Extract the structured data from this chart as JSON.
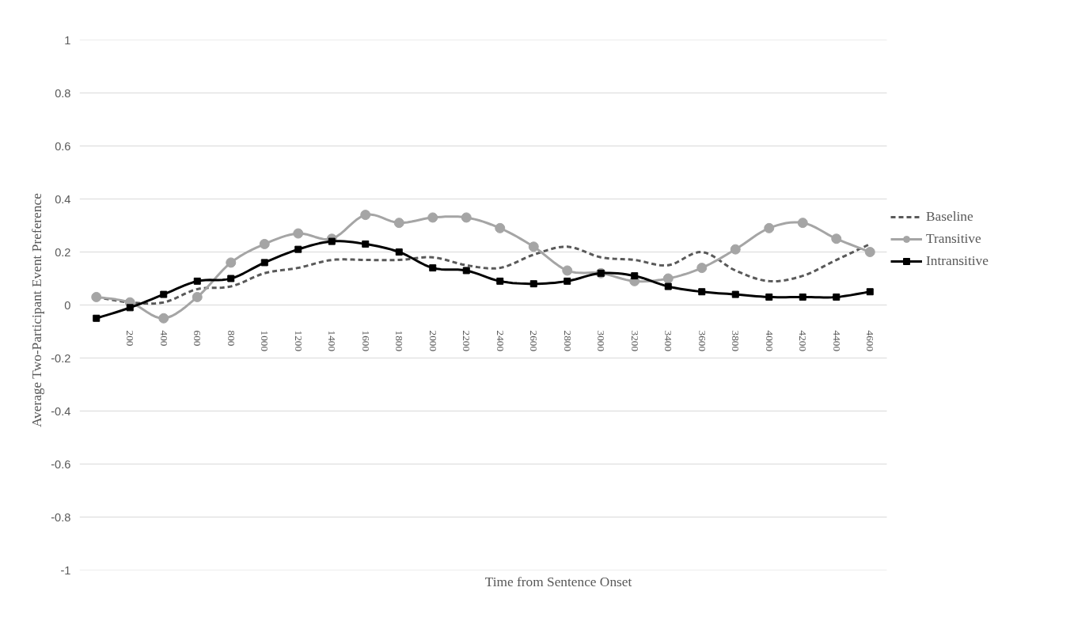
{
  "chart_data": {
    "type": "line",
    "xlabel": "Time from Sentence Onset",
    "ylabel": "Average  Two-Participant  Event  Preference",
    "categories": [
      null,
      "200",
      "400",
      "600",
      "800",
      "1000",
      "1200",
      "1400",
      "1600",
      "1800",
      "2000",
      "2200",
      "2400",
      "2600",
      "2800",
      "3000",
      "3200",
      "3400",
      "3600",
      "3800",
      "4000",
      "4200",
      "4400",
      "4600"
    ],
    "series": [
      {
        "name": "Baseline",
        "color": "#595959",
        "line_style": "dashed",
        "marker": "none",
        "values": [
          0.03,
          0.01,
          0.01,
          0.06,
          0.07,
          0.12,
          0.14,
          0.17,
          0.17,
          0.17,
          0.18,
          0.15,
          0.14,
          0.19,
          0.22,
          0.18,
          0.17,
          0.15,
          0.2,
          0.13,
          0.09,
          0.11,
          0.17,
          0.23
        ]
      },
      {
        "name": "Transitive",
        "color": "#a5a5a5",
        "line_style": "solid",
        "marker": "circle",
        "values": [
          0.03,
          0.01,
          -0.05,
          0.03,
          0.16,
          0.23,
          0.27,
          0.25,
          0.34,
          0.31,
          0.33,
          0.33,
          0.29,
          0.22,
          0.13,
          0.12,
          0.09,
          0.1,
          0.14,
          0.21,
          0.29,
          0.31,
          0.25,
          0.2
        ]
      },
      {
        "name": "Intransitive",
        "color": "#000000",
        "line_style": "solid",
        "marker": "square",
        "values": [
          -0.05,
          -0.01,
          0.04,
          0.09,
          0.1,
          0.16,
          0.21,
          0.24,
          0.23,
          0.2,
          0.14,
          0.13,
          0.09,
          0.08,
          0.09,
          0.12,
          0.11,
          0.07,
          0.05,
          0.04,
          0.03,
          0.03,
          0.03,
          0.05
        ]
      }
    ],
    "ylim": [
      -1,
      1
    ],
    "yticks": [
      -1,
      -0.8,
      -0.6,
      -0.4,
      -0.2,
      0,
      0.2,
      0.4,
      0.6,
      0.8,
      1
    ],
    "grid": "y",
    "legend": "right"
  }
}
